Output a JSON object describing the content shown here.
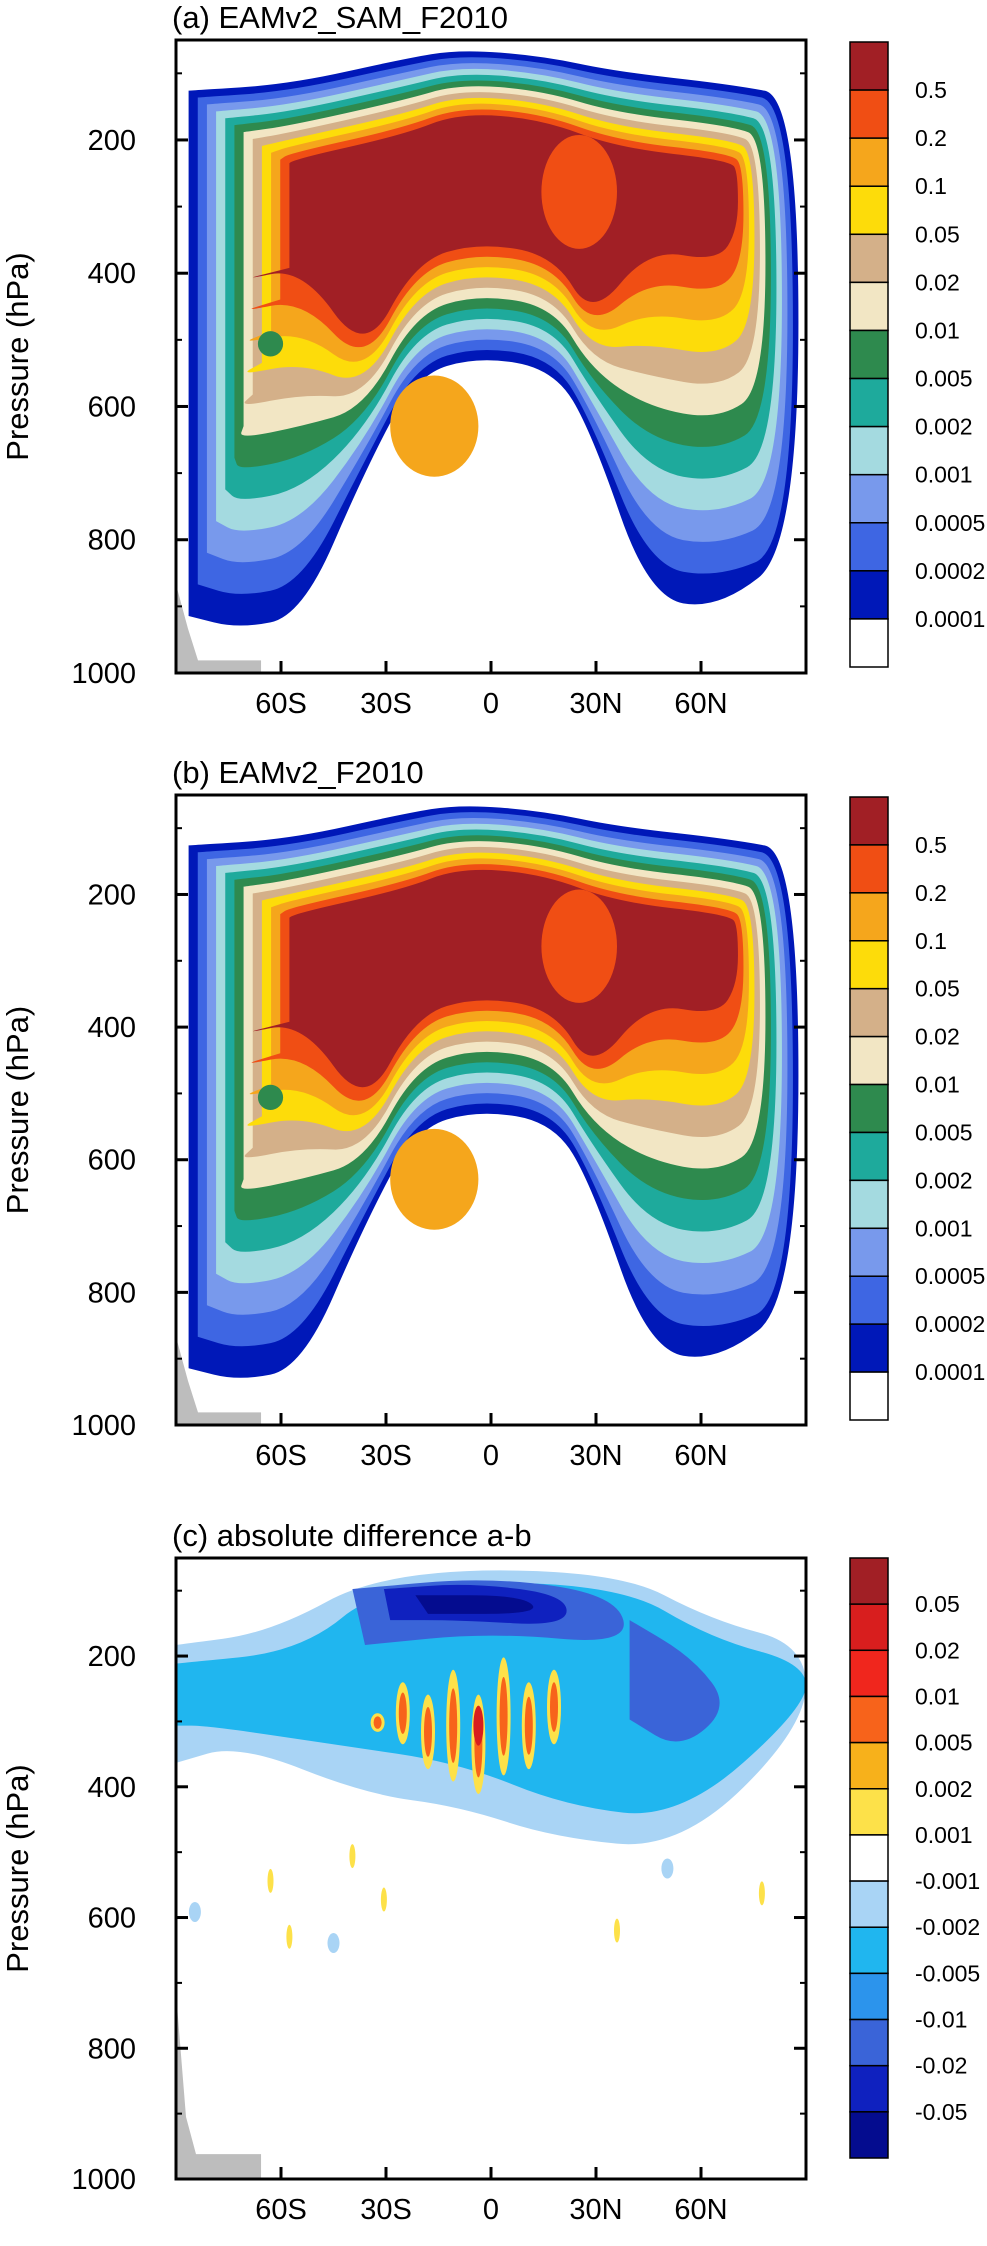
{
  "chart_data": [
    {
      "type": "contour",
      "title": "(a) EAMv2_SAM_F2010",
      "ylabel": "Pressure (hPa)",
      "y_ticks": [
        200,
        400,
        600,
        800,
        1000
      ],
      "x_ticks": [
        "60S",
        "30S",
        "0",
        "30N",
        "60N"
      ],
      "x_tick_values": [
        -60,
        -30,
        0,
        30,
        60
      ],
      "xlim": [
        -90,
        90
      ],
      "ylim": [
        1000,
        50
      ],
      "colorbar": {
        "labels": [
          "0.5",
          "0.2",
          "0.1",
          "0.05",
          "0.02",
          "0.01",
          "0.005",
          "0.002",
          "0.001",
          "0.0005",
          "0.0002",
          "0.0001"
        ],
        "colors": [
          "#a11f25",
          "#f04e14",
          "#f5a61c",
          "#fddc0a",
          "#d4b089",
          "#f2e6c4",
          "#2e8a4e",
          "#1eaa9c",
          "#a4dae0",
          "#7899ec",
          "#3e66e3",
          "#0018b8",
          "#ffffff"
        ]
      },
      "levels_in_plot": {
        "inner": {
          "y_min": 60,
          "y_max": 560
        },
        "fill_levels": [
          "0.0001",
          "0.0002",
          "0.0005",
          "0.001",
          "0.002",
          "0.005",
          "0.01",
          "0.02",
          "0.05",
          "0.1",
          "0.2",
          "0.5"
        ]
      }
    },
    {
      "type": "contour",
      "title": "(b) EAMv2_F2010",
      "ylabel": "Pressure (hPa)",
      "y_ticks": [
        200,
        400,
        600,
        800,
        1000
      ],
      "x_ticks": [
        "60S",
        "30S",
        "0",
        "30N",
        "60N"
      ],
      "x_tick_values": [
        -60,
        -30,
        0,
        30,
        60
      ],
      "xlim": [
        -90,
        90
      ],
      "ylim": [
        1000,
        50
      ],
      "colorbar": {
        "labels": [
          "0.5",
          "0.2",
          "0.1",
          "0.05",
          "0.02",
          "0.01",
          "0.005",
          "0.002",
          "0.001",
          "0.0005",
          "0.0002",
          "0.0001"
        ],
        "colors": [
          "#a11f25",
          "#f04e14",
          "#f5a61c",
          "#fddc0a",
          "#d4b089",
          "#f2e6c4",
          "#2e8a4e",
          "#1eaa9c",
          "#a4dae0",
          "#7899ec",
          "#3e66e3",
          "#0018b8",
          "#ffffff"
        ]
      }
    },
    {
      "type": "contour",
      "title": "(c) absolute difference a-b",
      "ylabel": "Pressure (hPa)",
      "y_ticks": [
        200,
        400,
        600,
        800,
        1000
      ],
      "x_ticks": [
        "60S",
        "30S",
        "0",
        "30N",
        "60N"
      ],
      "x_tick_values": [
        -60,
        -30,
        0,
        30,
        60
      ],
      "xlim": [
        -90,
        90
      ],
      "ylim": [
        1000,
        50
      ],
      "colorbar": {
        "labels": [
          "0.05",
          "0.02",
          "0.01",
          "0.005",
          "0.002",
          "0.001",
          "-0.001",
          "-0.002",
          "-0.005",
          "-0.01",
          "-0.02",
          "-0.05"
        ],
        "colors": [
          "#a11f25",
          "#d81e1e",
          "#f0261d",
          "#f7631b",
          "#f7b11b",
          "#fde149",
          "#ffffff",
          "#a9d4f5",
          "#20b6ef",
          "#2c94ec",
          "#3a64d8",
          "#0f21bf",
          "#040c8f"
        ]
      }
    }
  ]
}
